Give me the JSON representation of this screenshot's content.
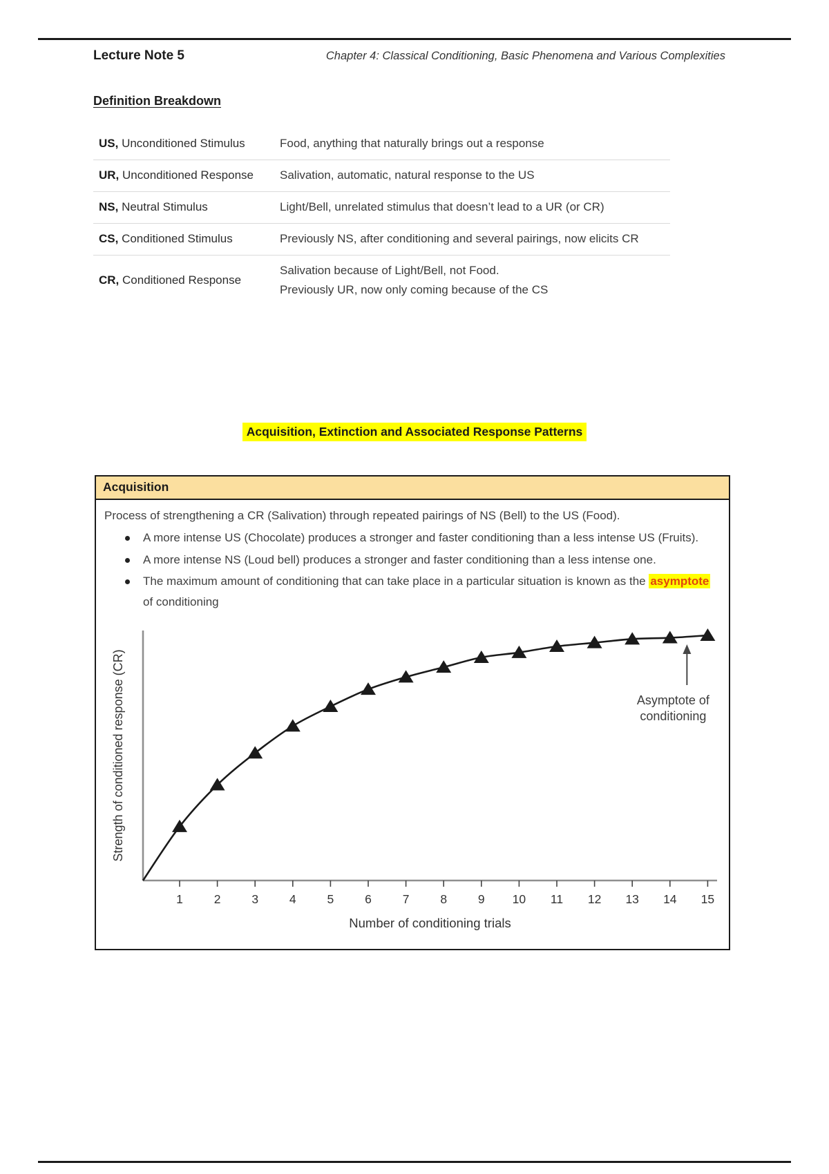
{
  "page": {
    "header": {
      "title": "Lecture Note 5",
      "chapter": "Chapter 4: Classical Conditioning, Basic Phenomena and Various Complexities"
    },
    "definitions": {
      "heading": "Definition Breakdown",
      "rows": [
        {
          "abbr": "US,",
          "term": "Unconditioned Stimulus",
          "definition": "Food, anything that naturally brings out a response"
        },
        {
          "abbr": "UR,",
          "term": "Unconditioned Response",
          "definition": "Salivation, automatic, natural response to the US"
        },
        {
          "abbr": "NS,",
          "term": "Neutral Stimulus",
          "definition": "Light/Bell, unrelated stimulus that doesn’t lead to a UR (or CR)"
        },
        {
          "abbr": "CS,",
          "term": "Conditioned Stimulus",
          "definition": "Previously NS, after conditioning and several pairings, now elicits CR"
        },
        {
          "abbr": "CR,",
          "term": "Conditioned Response",
          "definition": "Salivation because of Light/Bell, not Food.",
          "definition2": "Previously UR, now only coming because of the CS"
        }
      ]
    },
    "section": {
      "heading": "Acquisition, Extinction and Associated Response Patterns",
      "box_title": "Acquisition",
      "intro": "Process of strengthening a CR (Salivation) through repeated pairings of NS (Bell) to the US (Food).",
      "bullet1": "A more intense US (Chocolate) produces a stronger and faster conditioning than a less intense US (Fruits).",
      "bullet2": "A more intense NS (Loud bell) produces a stronger and faster conditioning than a less intense one.",
      "bullet3_pre": "The maximum amount of conditioning that can take place in a particular situation is known as the ",
      "bullet3_highlight": "asymptote",
      "bullet3_post": " of conditioning"
    },
    "colors": {
      "highlight_yellow": "#ffff00",
      "highlight_word_color": "#e2440c",
      "box_header_bg": "#fbdf9f",
      "rule_black": "#1b1b1b"
    }
  },
  "chart_data": {
    "type": "line",
    "x": [
      1,
      2,
      3,
      4,
      5,
      6,
      7,
      8,
      9,
      10,
      11,
      12,
      13,
      14,
      15
    ],
    "values": [
      0.22,
      0.39,
      0.52,
      0.63,
      0.71,
      0.78,
      0.83,
      0.87,
      0.91,
      0.93,
      0.955,
      0.97,
      0.985,
      0.99,
      1.0
    ],
    "x_ticks": [
      "1",
      "2",
      "3",
      "4",
      "5",
      "6",
      "7",
      "8",
      "9",
      "10",
      "11",
      "12",
      "13",
      "14",
      "15"
    ],
    "xlabel": "Number of conditioning trials",
    "ylabel": "Strength of conditioned response (CR)",
    "annotation_lines": [
      "Asymptote of",
      "conditioning"
    ],
    "marker": "triangle-up",
    "line_color": "#1a1a1a",
    "marker_color": "#1a1a1a",
    "axis_color": "#8f8f8f",
    "tick_color": "#444444",
    "label_color": "#333333",
    "ylim": [
      0,
      1.05
    ],
    "grid": false,
    "legend": false
  }
}
